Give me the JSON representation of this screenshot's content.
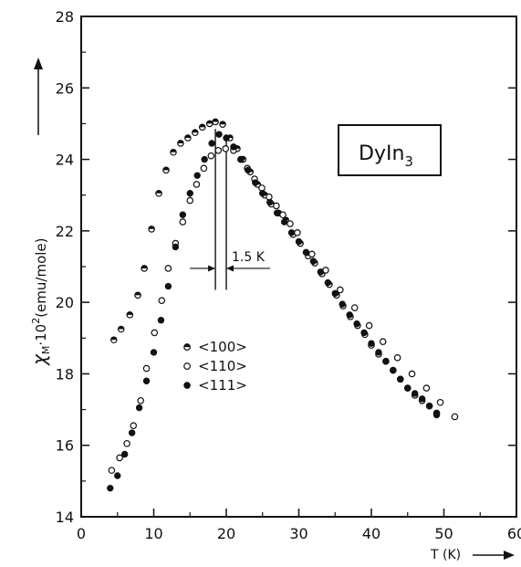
{
  "chart_data": {
    "type": "scatter",
    "title": "",
    "inset_label_main": "DyIn",
    "inset_label_sub": "3",
    "xlabel": "T (K)",
    "ylabel_symbol": "χ",
    "ylabel_subscript": "M",
    "ylabel_rest": "·10",
    "ylabel_superscript": "2",
    "ylabel_units": "(emu/mole)",
    "xlim": [
      0,
      60
    ],
    "ylim": [
      14,
      28
    ],
    "xticks": [
      0,
      10,
      20,
      30,
      40,
      50,
      60
    ],
    "yticks": [
      14,
      16,
      18,
      20,
      22,
      24,
      26,
      28
    ],
    "grid": false,
    "legend_position": "center-left",
    "annotation": {
      "text": "1.5 K",
      "x_left": 18.5,
      "x_right": 20.0,
      "y": 20.95
    },
    "series": [
      {
        "name": "<100>",
        "marker": "half-filled",
        "points": [
          [
            4.5,
            18.95
          ],
          [
            5.5,
            19.25
          ],
          [
            6.7,
            19.65
          ],
          [
            7.8,
            20.2
          ],
          [
            8.7,
            20.95
          ],
          [
            9.7,
            22.05
          ],
          [
            10.7,
            23.05
          ],
          [
            11.7,
            23.7
          ],
          [
            12.7,
            24.2
          ],
          [
            13.7,
            24.45
          ],
          [
            14.7,
            24.6
          ],
          [
            15.7,
            24.75
          ],
          [
            16.7,
            24.9
          ],
          [
            17.7,
            25.0
          ],
          [
            18.5,
            25.05
          ],
          [
            19.5,
            24.98
          ],
          [
            20.5,
            24.6
          ],
          [
            21.5,
            24.3
          ],
          [
            22.3,
            24.0
          ],
          [
            23.3,
            23.65
          ],
          [
            24.3,
            23.3
          ],
          [
            25.3,
            23.0
          ],
          [
            26.2,
            22.75
          ],
          [
            27.2,
            22.5
          ],
          [
            28.2,
            22.3
          ],
          [
            29.2,
            21.9
          ],
          [
            30.2,
            21.65
          ],
          [
            31.3,
            21.3
          ],
          [
            32.2,
            21.1
          ],
          [
            33.2,
            20.8
          ],
          [
            34.2,
            20.5
          ],
          [
            35.2,
            20.2
          ],
          [
            36.1,
            19.9
          ],
          [
            37.1,
            19.6
          ],
          [
            38.1,
            19.35
          ],
          [
            39.1,
            19.1
          ],
          [
            40.0,
            18.8
          ],
          [
            41.0,
            18.55
          ],
          [
            42.0,
            18.35
          ],
          [
            43.0,
            18.1
          ],
          [
            44.0,
            17.85
          ],
          [
            45.0,
            17.6
          ],
          [
            46.0,
            17.4
          ],
          [
            47.0,
            17.25
          ],
          [
            48.0,
            17.1
          ],
          [
            49.0,
            16.9
          ]
        ]
      },
      {
        "name": "<110>",
        "marker": "open",
        "points": [
          [
            4.2,
            15.3
          ],
          [
            5.3,
            15.65
          ],
          [
            6.3,
            16.05
          ],
          [
            7.2,
            16.55
          ],
          [
            8.2,
            17.25
          ],
          [
            9.0,
            18.15
          ],
          [
            10.1,
            19.15
          ],
          [
            11.1,
            20.05
          ],
          [
            12.0,
            20.95
          ],
          [
            13.0,
            21.65
          ],
          [
            14.0,
            22.25
          ],
          [
            15.0,
            22.85
          ],
          [
            15.9,
            23.3
          ],
          [
            16.9,
            23.75
          ],
          [
            17.9,
            24.1
          ],
          [
            18.9,
            24.25
          ],
          [
            19.9,
            24.3
          ],
          [
            21.0,
            24.25
          ],
          [
            22.0,
            24.0
          ],
          [
            22.9,
            23.75
          ],
          [
            23.9,
            23.45
          ],
          [
            24.9,
            23.2
          ],
          [
            25.9,
            22.95
          ],
          [
            26.9,
            22.7
          ],
          [
            27.8,
            22.45
          ],
          [
            28.8,
            22.2
          ],
          [
            29.8,
            21.95
          ],
          [
            31.8,
            21.35
          ],
          [
            33.7,
            20.9
          ],
          [
            35.7,
            20.35
          ],
          [
            37.7,
            19.85
          ],
          [
            39.7,
            19.35
          ],
          [
            41.6,
            18.9
          ],
          [
            43.6,
            18.45
          ],
          [
            45.6,
            18.0
          ],
          [
            47.6,
            17.6
          ],
          [
            49.5,
            17.2
          ],
          [
            51.5,
            16.8
          ]
        ]
      },
      {
        "name": "<111>",
        "marker": "filled",
        "points": [
          [
            4.0,
            14.8
          ],
          [
            5.0,
            15.15
          ],
          [
            6.0,
            15.75
          ],
          [
            7.0,
            16.35
          ],
          [
            8.0,
            17.05
          ],
          [
            9.0,
            17.8
          ],
          [
            10.0,
            18.6
          ],
          [
            11.0,
            19.5
          ],
          [
            12.0,
            20.45
          ],
          [
            13.0,
            21.55
          ],
          [
            14.0,
            22.45
          ],
          [
            15.0,
            23.05
          ],
          [
            16.0,
            23.55
          ],
          [
            17.0,
            24.0
          ],
          [
            18.0,
            24.45
          ],
          [
            19.0,
            24.7
          ],
          [
            20.0,
            24.6
          ],
          [
            21.0,
            24.35
          ],
          [
            22.0,
            24.0
          ],
          [
            23.0,
            23.7
          ],
          [
            24.0,
            23.35
          ],
          [
            25.0,
            23.05
          ],
          [
            26.0,
            22.8
          ],
          [
            27.0,
            22.5
          ],
          [
            28.0,
            22.25
          ],
          [
            29.0,
            21.95
          ],
          [
            30.0,
            21.7
          ],
          [
            31.0,
            21.4
          ],
          [
            32.0,
            21.15
          ],
          [
            33.0,
            20.85
          ],
          [
            34.0,
            20.55
          ],
          [
            35.0,
            20.25
          ],
          [
            36.0,
            19.95
          ],
          [
            37.0,
            19.65
          ],
          [
            38.0,
            19.4
          ],
          [
            39.0,
            19.15
          ],
          [
            40.0,
            18.85
          ],
          [
            41.0,
            18.6
          ],
          [
            42.0,
            18.35
          ],
          [
            43.0,
            18.1
          ],
          [
            44.0,
            17.85
          ],
          [
            45.0,
            17.6
          ],
          [
            46.0,
            17.45
          ],
          [
            47.0,
            17.3
          ],
          [
            48.0,
            17.1
          ],
          [
            49.0,
            16.85
          ]
        ]
      }
    ]
  }
}
